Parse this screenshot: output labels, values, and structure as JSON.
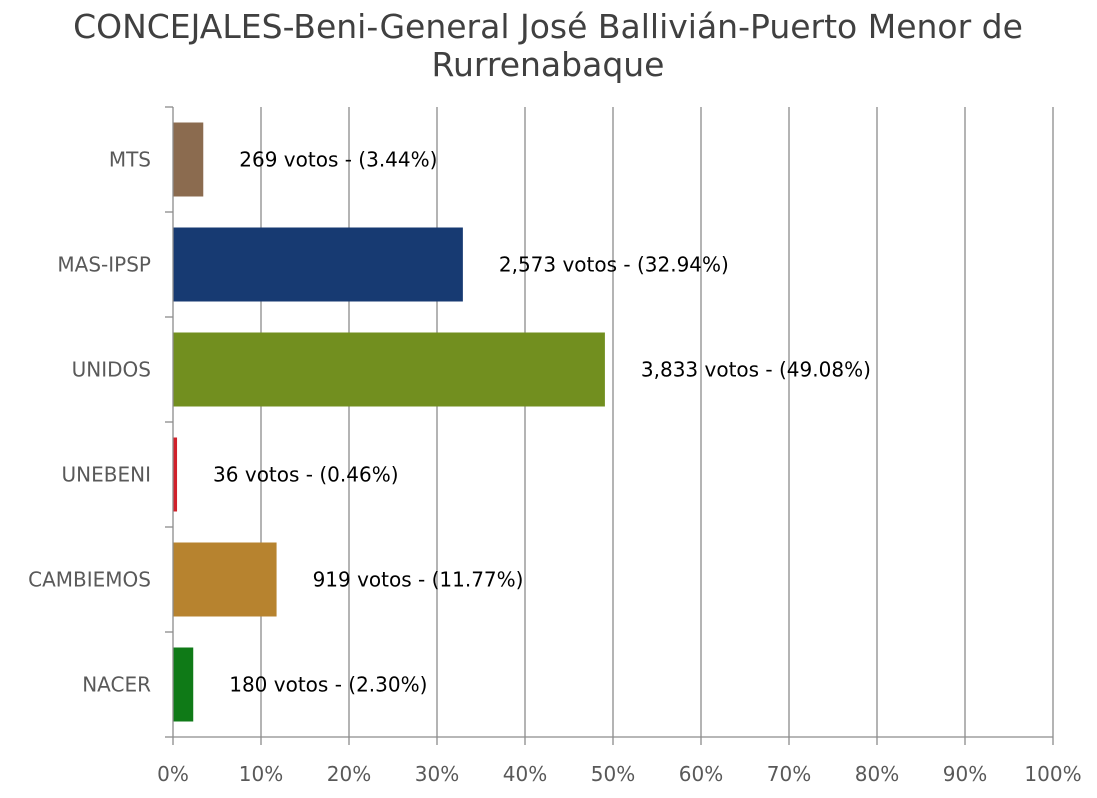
{
  "chart_data": {
    "type": "bar",
    "orientation": "horizontal",
    "title_lines": [
      "CONCEJALES-Beni-General José Ballivián-Puerto Menor de",
      "Rurrenabaque"
    ],
    "categories": [
      "MTS",
      "MAS-IPSP",
      "UNIDOS",
      "UNEBENI",
      "CAMBIEMOS",
      "NACER"
    ],
    "values": [
      3.44,
      32.94,
      49.08,
      0.46,
      11.77,
      2.3
    ],
    "votes": [
      "269",
      "2,573",
      "3,833",
      "36",
      "919",
      "180"
    ],
    "data_labels": [
      "269 votos - (3.44%)",
      "2,573 votos - (32.94%)",
      "3,833 votos - (49.08%)",
      "36 votos - (0.46%)",
      "919 votos - (11.77%)",
      "180 votos - (2.30%)"
    ],
    "colors": [
      "#8b6b4f",
      "#173a72",
      "#728f1f",
      "#d0202a",
      "#b7832f",
      "#0f7a17"
    ],
    "x_ticks": [
      0,
      10,
      20,
      30,
      40,
      50,
      60,
      70,
      80,
      90,
      100
    ],
    "x_tick_labels": [
      "0%",
      "10%",
      "20%",
      "30%",
      "40%",
      "50%",
      "60%",
      "70%",
      "80%",
      "90%",
      "100%"
    ],
    "xlim": [
      0,
      100
    ],
    "xlabel": "",
    "ylabel": "",
    "grid": true,
    "legend": "none"
  }
}
